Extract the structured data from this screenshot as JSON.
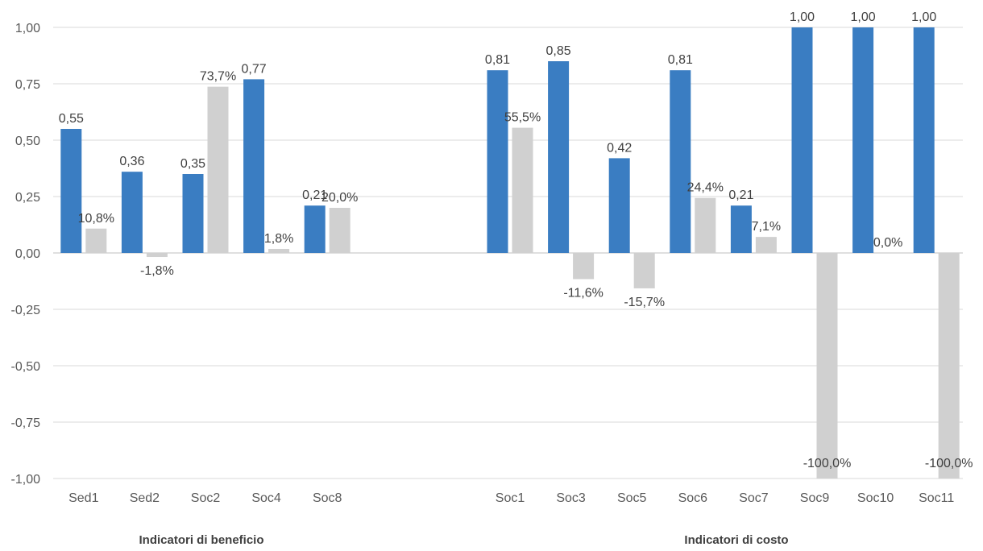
{
  "chart_data": {
    "type": "bar",
    "ylim": [
      -1.0,
      1.0
    ],
    "y_ticks": [
      "1,00",
      "0,75",
      "0,50",
      "0,25",
      "0,00",
      "-0,25",
      "-0,50",
      "-0,75",
      "-1,00"
    ],
    "y_tick_values": [
      1.0,
      0.75,
      0.5,
      0.25,
      0.0,
      -0.25,
      -0.5,
      -0.75,
      -1.0
    ],
    "grid": true,
    "legend": "none",
    "colors": {
      "series1": "#3A7DC2",
      "series2": "#D0D0D0",
      "grid": "#D9D9D9",
      "text": "#404040"
    },
    "groups": [
      {
        "title": "Indicatori di beneficio",
        "categories": [
          "Sed1",
          "Sed2",
          "Soc2",
          "Soc4",
          "Soc8"
        ],
        "series": [
          {
            "values": [
              0.55,
              0.36,
              0.35,
              0.77,
              0.21
            ],
            "labels": [
              "0,55",
              "0,36",
              "0,35",
              "0,77",
              "0,21"
            ]
          },
          {
            "values": [
              0.108,
              -0.018,
              0.737,
              0.018,
              0.2
            ],
            "labels": [
              "10,8%",
              "-1,8%",
              "73,7%",
              "1,8%",
              "20,0%"
            ]
          }
        ]
      },
      {
        "title": "Indicatori di costo",
        "categories": [
          "Soc1",
          "Soc3",
          "Soc5",
          "Soc6",
          "Soc7",
          "Soc9",
          "Soc10",
          "Soc11"
        ],
        "series": [
          {
            "values": [
              0.81,
              0.85,
              0.42,
              0.81,
              0.21,
              1.0,
              1.0,
              1.0
            ],
            "labels": [
              "0,81",
              "0,85",
              "0,42",
              "0,81",
              "0,21",
              "1,00",
              "1,00",
              "1,00"
            ]
          },
          {
            "values": [
              0.555,
              -0.116,
              -0.157,
              0.244,
              0.071,
              -1.0,
              0.0,
              -1.0
            ],
            "labels": [
              "55,5%",
              "-11,6%",
              "-15,7%",
              "24,4%",
              "7,1%",
              "-100,0%",
              "0,0%",
              "-100,0%"
            ]
          }
        ]
      }
    ]
  }
}
